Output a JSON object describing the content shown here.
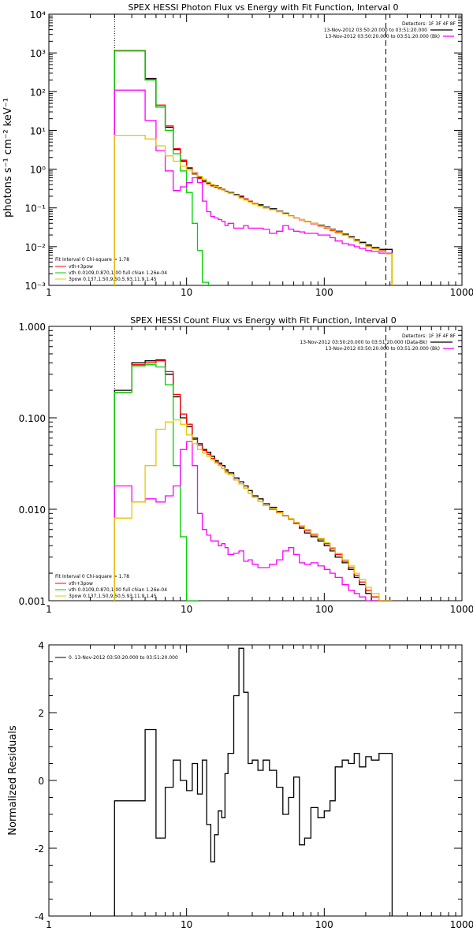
{
  "chart_data": [
    {
      "type": "line",
      "title": "SPEX HESSI Photon Flux vs Energy with Fit Function, Interval 0",
      "xlabel": "",
      "ylabel": "photons s⁻¹ cm⁻² keV⁻¹",
      "xscale": "log",
      "yscale": "log",
      "xlim": [
        1,
        1000
      ],
      "ylim": [
        0.001,
        10000
      ],
      "xtick_labels": [
        "1",
        "10",
        "100",
        "1000"
      ],
      "ytick_labels": [
        "10⁻³",
        "10⁻²",
        "10⁻¹",
        "10⁰",
        "10¹",
        "10²",
        "10³",
        "10⁴"
      ],
      "vlines": [
        3,
        280
      ],
      "legend_top_right": [
        "Detectors: 1F 3F 4F 8F",
        "13-Nov-2012 03:50:20.000 to 03:51:20.000",
        "13-Nov-2012 03:50:20.000 to 03:51:20.000 (Bk)"
      ],
      "legend_bottom_left": [
        "Fit Interval 0   Chi-square = 1.78",
        "vth+3pow",
        "vth 0.0109,0.870,1.00  full chian 1.26e-04",
        "3pow 0.137,1.50,9.50,5.93,11.9,1.45"
      ],
      "series": [
        {
          "color": "#000000",
          "x": [
            3,
            4,
            5,
            6,
            7,
            8,
            9,
            10,
            11,
            12,
            13,
            14,
            15,
            16,
            17,
            18,
            19,
            20,
            22,
            24,
            26,
            28,
            30,
            33,
            36,
            40,
            45,
            50,
            55,
            60,
            66,
            72,
            80,
            90,
            100,
            110,
            120,
            135,
            150,
            165,
            180,
            200,
            220,
            250,
            280
          ],
          "y": [
            1150,
            1150,
            220,
            40,
            12,
            3.2,
            1.6,
            1.05,
            0.75,
            0.62,
            0.5,
            0.44,
            0.38,
            0.37,
            0.33,
            0.3,
            0.27,
            0.25,
            0.22,
            0.2,
            0.17,
            0.15,
            0.13,
            0.12,
            0.105,
            0.095,
            0.082,
            0.073,
            0.063,
            0.056,
            0.05,
            0.045,
            0.04,
            0.036,
            0.032,
            0.028,
            0.025,
            0.021,
            0.018,
            0.015,
            0.013,
            0.011,
            0.0095,
            0.0085,
            0.0085
          ]
        },
        {
          "color": "#ff0000",
          "x": [
            3,
            4,
            5,
            6,
            7,
            8,
            9,
            10,
            11,
            12,
            13,
            14,
            15,
            16,
            17,
            18,
            19,
            20,
            22,
            24,
            26,
            28,
            30,
            33,
            36,
            40,
            45,
            50,
            55,
            60,
            66,
            72,
            80,
            90,
            100,
            110,
            120,
            135,
            150,
            165,
            180,
            200,
            220,
            250,
            280
          ],
          "y": [
            1140,
            1140,
            210,
            45,
            13,
            3.4,
            1.7,
            1.1,
            0.8,
            0.58,
            0.47,
            0.42,
            0.37,
            0.34,
            0.31,
            0.29,
            0.26,
            0.24,
            0.21,
            0.19,
            0.17,
            0.15,
            0.13,
            0.115,
            0.1,
            0.09,
            0.08,
            0.07,
            0.062,
            0.055,
            0.049,
            0.044,
            0.039,
            0.034,
            0.03,
            0.026,
            0.023,
            0.02,
            0.017,
            0.014,
            0.012,
            0.0105,
            0.009,
            0.0078,
            0.0068
          ]
        },
        {
          "color": "#00d000",
          "x": [
            3,
            4,
            5,
            6,
            7,
            8,
            9,
            10,
            11,
            12,
            13
          ],
          "y": [
            1120,
            1120,
            200,
            40,
            10,
            2.5,
            0.9,
            0.25,
            0.04,
            0.008,
            0.0012
          ]
        },
        {
          "color": "#ff00ff",
          "x": [
            3,
            4,
            5,
            6,
            7,
            8,
            9,
            10,
            11,
            12,
            13,
            14,
            15,
            16,
            17,
            18,
            19,
            20,
            22,
            24,
            26,
            28,
            30,
            33,
            36,
            40,
            45,
            50,
            55,
            60,
            66,
            72,
            80,
            90,
            100,
            110,
            120,
            135,
            150,
            165,
            180,
            200,
            220,
            250,
            280
          ],
          "y": [
            110,
            110,
            18,
            3,
            0.9,
            0.28,
            0.35,
            0.45,
            0.6,
            0.45,
            0.15,
            0.08,
            0.06,
            0.055,
            0.05,
            0.045,
            0.035,
            0.04,
            0.03,
            0.03,
            0.035,
            0.03,
            0.03,
            0.03,
            0.028,
            0.022,
            0.025,
            0.035,
            0.028,
            0.025,
            0.024,
            0.022,
            0.022,
            0.02,
            0.02,
            0.017,
            0.014,
            0.012,
            0.011,
            0.01,
            0.009,
            0.008,
            0.0075,
            0.0068,
            0.0068
          ]
        },
        {
          "color": "#e6c800",
          "x": [
            3,
            4,
            5,
            6,
            7,
            8,
            9,
            10,
            11,
            12,
            13,
            14,
            15,
            16,
            17,
            18,
            19,
            20,
            22,
            24,
            26,
            28,
            30,
            33,
            36,
            40,
            45,
            50,
            55,
            60,
            66,
            72,
            80,
            90,
            100,
            110,
            120,
            135,
            150,
            165,
            180,
            200,
            220,
            250,
            280
          ],
          "y": [
            7.5,
            7.5,
            6,
            4,
            2.2,
            1.6,
            1.2,
            0.95,
            0.78,
            0.65,
            0.55,
            0.46,
            0.4,
            0.36,
            0.32,
            0.29,
            0.26,
            0.24,
            0.21,
            0.18,
            0.16,
            0.14,
            0.125,
            0.11,
            0.1,
            0.09,
            0.08,
            0.07,
            0.062,
            0.056,
            0.05,
            0.045,
            0.04,
            0.035,
            0.031,
            0.027,
            0.024,
            0.02,
            0.017,
            0.014,
            0.012,
            0.01,
            0.0088,
            0.0075,
            0.0065
          ]
        }
      ]
    },
    {
      "type": "line",
      "title": "SPEX HESSI Count Flux vs Energy with Fit Function, Interval 0",
      "xlabel": "",
      "ylabel": "",
      "xscale": "log",
      "yscale": "log",
      "xlim": [
        1,
        1000
      ],
      "ylim": [
        0.001,
        1.0
      ],
      "xtick_labels": [
        "1",
        "10",
        "100",
        "1000"
      ],
      "ytick_labels": [
        "0.001",
        "0.010",
        "0.100",
        "1.000"
      ],
      "vlines": [
        3,
        280
      ],
      "legend_top_right": [
        "Detectors: 1F 3F 4F 8F",
        "13-Nov-2012 03:50:20.000 to 03:51:20.000 (Data-Bk)",
        "13-Nov-2012 03:50:20.000 to 03:51:20.000 (Bk)"
      ],
      "legend_bottom_left": [
        "Fit Interval 0   Chi-square = 1.78",
        "vth+3pow",
        "vth 0.0109,0.870,1.00  full chian 1.26e-04",
        "3pow 0.137,1.50,9.50,5.93,11.9,1.45"
      ],
      "series": [
        {
          "color": "#000000",
          "x": [
            3,
            4,
            5,
            6,
            7,
            8,
            9,
            10,
            11,
            12,
            13,
            14,
            15,
            16,
            17,
            18,
            19,
            20,
            22,
            24,
            26,
            28,
            30,
            33,
            36,
            40,
            45,
            50,
            55,
            60,
            66,
            72,
            80,
            90,
            100,
            110,
            120,
            135,
            150,
            165,
            180,
            200,
            220,
            250,
            280
          ],
          "y": [
            0.2,
            0.4,
            0.42,
            0.43,
            0.3,
            0.17,
            0.1,
            0.08,
            0.06,
            0.052,
            0.045,
            0.042,
            0.038,
            0.034,
            0.032,
            0.03,
            0.027,
            0.025,
            0.022,
            0.02,
            0.018,
            0.016,
            0.014,
            0.013,
            0.0115,
            0.0105,
            0.0095,
            0.0085,
            0.0078,
            0.007,
            0.0062,
            0.0055,
            0.005,
            0.0045,
            0.004,
            0.0035,
            0.003,
            0.0026,
            0.0022,
            0.0018,
            0.0015,
            0.0012,
            0.001,
            0.0009,
            0.0009
          ]
        },
        {
          "color": "#ff0000",
          "x": [
            3,
            4,
            5,
            6,
            7,
            8,
            9,
            10,
            11,
            12,
            13,
            14,
            15,
            16,
            17,
            18,
            19,
            20,
            22,
            24,
            26,
            28,
            30,
            33,
            36,
            40,
            45,
            50,
            55,
            60,
            66,
            72,
            80,
            90,
            100,
            110,
            120,
            135,
            150,
            165,
            180,
            200,
            220,
            250,
            280
          ],
          "y": [
            0.19,
            0.38,
            0.4,
            0.42,
            0.32,
            0.18,
            0.11,
            0.085,
            0.058,
            0.05,
            0.044,
            0.04,
            0.036,
            0.033,
            0.031,
            0.028,
            0.026,
            0.024,
            0.021,
            0.019,
            0.017,
            0.015,
            0.0135,
            0.0122,
            0.011,
            0.01,
            0.0092,
            0.0085,
            0.0078,
            0.007,
            0.0064,
            0.0058,
            0.0052,
            0.0047,
            0.0042,
            0.0037,
            0.0032,
            0.0027,
            0.0023,
            0.0019,
            0.0016,
            0.0013,
            0.0011,
            0.0009,
            0.00085
          ]
        },
        {
          "color": "#00d000",
          "x": [
            3,
            4,
            5,
            6,
            7,
            8,
            9,
            10,
            11
          ],
          "y": [
            0.19,
            0.37,
            0.38,
            0.36,
            0.23,
            0.03,
            0.005,
            0.0009,
            0.0009
          ]
        },
        {
          "color": "#ff00ff",
          "x": [
            3,
            4,
            5,
            6,
            7,
            8,
            9,
            10,
            11,
            12,
            13,
            14,
            15,
            16,
            17,
            18,
            19,
            20,
            22,
            24,
            26,
            28,
            30,
            33,
            36,
            40,
            45,
            50,
            55,
            60,
            66,
            72,
            80,
            90,
            100,
            110,
            120,
            135,
            150,
            165,
            180,
            200,
            220,
            250,
            280
          ],
          "y": [
            0.018,
            0.012,
            0.013,
            0.012,
            0.014,
            0.018,
            0.045,
            0.055,
            0.03,
            0.009,
            0.006,
            0.0052,
            0.0045,
            0.0045,
            0.004,
            0.0042,
            0.0038,
            0.0032,
            0.0033,
            0.0035,
            0.0027,
            0.0028,
            0.0025,
            0.0023,
            0.0023,
            0.0025,
            0.0028,
            0.0035,
            0.0038,
            0.0032,
            0.0026,
            0.0025,
            0.0026,
            0.0024,
            0.0022,
            0.002,
            0.0018,
            0.0015,
            0.0013,
            0.0012,
            0.0011,
            0.001,
            0.0009,
            0.0009,
            0.0009
          ]
        },
        {
          "color": "#e6c800",
          "x": [
            3,
            4,
            5,
            6,
            7,
            8,
            9,
            10,
            11,
            12,
            13,
            14,
            15,
            16,
            17,
            18,
            19,
            20,
            22,
            24,
            26,
            28,
            30,
            33,
            36,
            40,
            45,
            50,
            55,
            60,
            66,
            72,
            80,
            90,
            100,
            110,
            120,
            135,
            150,
            165,
            180,
            200,
            220,
            250,
            280
          ],
          "y": [
            0.008,
            0.012,
            0.03,
            0.075,
            0.09,
            0.095,
            0.085,
            0.065,
            0.052,
            0.045,
            0.041,
            0.038,
            0.035,
            0.032,
            0.03,
            0.028,
            0.025,
            0.024,
            0.021,
            0.019,
            0.017,
            0.015,
            0.0135,
            0.0122,
            0.011,
            0.0102,
            0.0093,
            0.0086,
            0.0079,
            0.0072,
            0.0066,
            0.006,
            0.0054,
            0.0048,
            0.0043,
            0.0038,
            0.0033,
            0.0028,
            0.0024,
            0.002,
            0.0017,
            0.0014,
            0.0012,
            0.001,
            0.00088
          ]
        }
      ]
    },
    {
      "type": "line",
      "title": "",
      "xlabel": "",
      "ylabel": "Normalized Residuals",
      "xscale": "log",
      "yscale": "linear",
      "xlim": [
        1,
        1000
      ],
      "ylim": [
        -4,
        4
      ],
      "xtick_labels": [
        "1",
        "10",
        "100",
        "1000"
      ],
      "ytick_labels": [
        "-4",
        "-2",
        "0",
        "2",
        "4"
      ],
      "legend_top_left": [
        "0. 13-Nov-2012 03:50:20.000 to 03:51:20.000"
      ],
      "series": [
        {
          "color": "#000000",
          "x": [
            3,
            4,
            5,
            6,
            7,
            8,
            9,
            10,
            11,
            12,
            13,
            14,
            15,
            16,
            17,
            18,
            19,
            20,
            22,
            24,
            26,
            28,
            30,
            33,
            36,
            40,
            45,
            50,
            55,
            60,
            66,
            72,
            80,
            90,
            100,
            110,
            120,
            135,
            150,
            165,
            180,
            200,
            220,
            250,
            280
          ],
          "y": [
            -0.6,
            -0.6,
            1.5,
            -1.7,
            -0.2,
            0.6,
            0,
            -0.3,
            0.5,
            -0.4,
            0.6,
            -1.3,
            -2.4,
            -1.6,
            -0.9,
            -1.1,
            0.2,
            0.8,
            2.5,
            3.9,
            2.6,
            0.5,
            0.6,
            0.3,
            0.6,
            0.3,
            -0.2,
            -1.0,
            -0.5,
            0.1,
            -1.9,
            -1.7,
            -0.8,
            -1.1,
            -0.9,
            -0.6,
            0.4,
            0.6,
            0.5,
            0.8,
            0.4,
            0.7,
            0.6,
            0.8,
            0.8
          ]
        }
      ]
    }
  ]
}
